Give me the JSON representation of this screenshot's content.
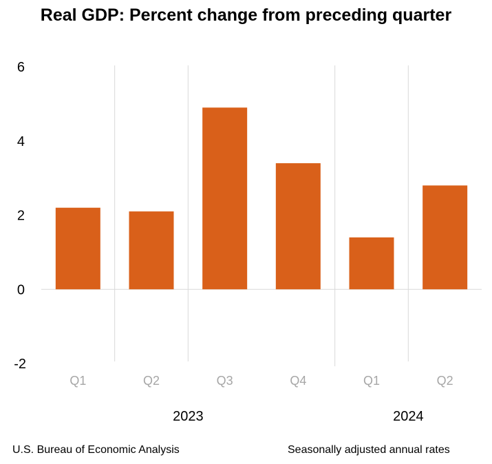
{
  "chart_data": {
    "type": "bar",
    "title": "Real GDP:  Percent change from preceding quarter",
    "categories": [
      "Q1",
      "Q2",
      "Q3",
      "Q4",
      "Q1",
      "Q2"
    ],
    "groups": [
      {
        "label": "2023",
        "categories": [
          "Q1",
          "Q2",
          "Q3",
          "Q4"
        ]
      },
      {
        "label": "2024",
        "categories": [
          "Q1",
          "Q2"
        ]
      }
    ],
    "values": [
      2.2,
      2.1,
      4.9,
      3.4,
      1.4,
      2.8
    ],
    "ylim": [
      -2,
      6
    ],
    "yticks": [
      6,
      4,
      2,
      0,
      -2
    ],
    "xlabel": "",
    "ylabel": "",
    "bar_color": "#D9601A",
    "grid": "vertical separators"
  },
  "footer": {
    "source": "U.S. Bureau of Economic Analysis",
    "note": "Seasonally adjusted annual rates"
  }
}
